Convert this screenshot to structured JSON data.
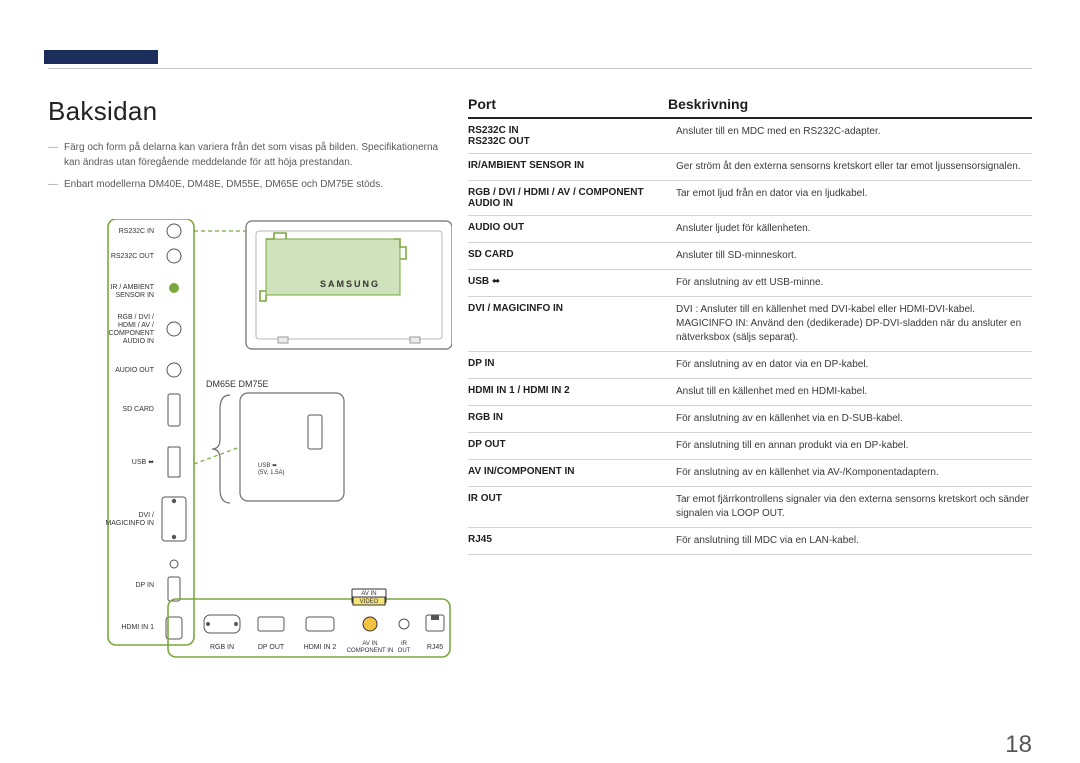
{
  "title": "Baksidan",
  "notes": [
    "Färg och form på delarna kan variera från det som visas på bilden. Specifikationerna kan ändras utan föregående meddelande för att höja prestandan.",
    "Enbart modellerna DM40E, DM48E, DM55E, DM65E och DM75E stöds."
  ],
  "table_head": {
    "port": "Port",
    "desc": "Beskrivning"
  },
  "ports": [
    {
      "name": "RS232C IN",
      "desc": "",
      "desc2": "Ansluter till en MDC med en RS232C-adapter."
    },
    {
      "name": "RS232C OUT",
      "desc": ""
    },
    {
      "name": "IR/AMBIENT SENSOR IN",
      "desc": "Ger ström åt den externa sensorns kretskort eller tar emot ljussensorsignalen."
    },
    {
      "name": "RGB / DVI / HDMI / AV / COMPONENT AUDIO IN",
      "desc": "",
      "desc2": "Tar emot ljud från en dator via en ljudkabel."
    },
    {
      "name": "AUDIO OUT",
      "desc": "Ansluter ljudet för källenheten."
    },
    {
      "name": "SD CARD",
      "desc": "Ansluter till SD-minneskort."
    },
    {
      "name": "USB ←",
      "desc": "För anslutning av ett USB-minne.",
      "name_html": "USB"
    },
    {
      "name": "DVI / MAGICINFO IN",
      "desc": "DVI : Ansluter till en källenhet med DVI-kabel eller HDMI-DVI-kabel.",
      "desc_extra": "MAGICINFO IN: Använd den (dedikerade) DP-DVI-sladden när du ansluter en nätverksbox (säljs separat)."
    },
    {
      "name": "DP IN",
      "desc": "För anslutning av en dator via en DP-kabel."
    },
    {
      "name": "HDMI IN 1 / HDMI IN 2",
      "desc": "Anslut till en källenhet med en HDMI-kabel."
    },
    {
      "name": "RGB IN",
      "desc": "För anslutning av en källenhet via en D-SUB-kabel."
    },
    {
      "name": "DP OUT",
      "desc": "För anslutning till en annan produkt via en DP-kabel."
    },
    {
      "name": "AV IN/COMPONENT IN",
      "desc": "För anslutning av en källenhet via AV-/Komponentadaptern."
    },
    {
      "name": "IR OUT",
      "desc": "Tar emot fjärrkontrollens signaler via den externa sensorns kretskort och sänder signalen via LOOP OUT."
    },
    {
      "name": "RJ45",
      "desc": "För anslutning till MDC via en LAN-kabel."
    }
  ],
  "diagram": {
    "left_labels": [
      "RS232C IN",
      "RS232C OUT",
      "IR / AMBIENT SENSOR IN",
      "RGB / DVI / HDMI / AV / COMPONENT AUDIO IN",
      "AUDIO OUT",
      "SD CARD",
      "USB",
      "DVI / MAGICINFO IN",
      "DP IN",
      "HDMI IN 1"
    ],
    "bottom_labels": [
      "RGB IN",
      "DP OUT",
      "HDMI IN 2",
      "AV IN COMPONENT IN",
      "IR OUT",
      "RJ45"
    ],
    "models_label": "DM65E DM75E",
    "usb_inner_label": "USB ← (5V, 1.5A)",
    "brand_on_monitor": "SAMSUNG",
    "avin_title": "AV IN",
    "avin_tag": "VIDEO"
  },
  "page_number": "18",
  "colors": {
    "accent_bar": "#1b2d5a",
    "green": "#7aa83e",
    "green_fill": "#cfe2bb",
    "rule": "#c7c7c7"
  }
}
